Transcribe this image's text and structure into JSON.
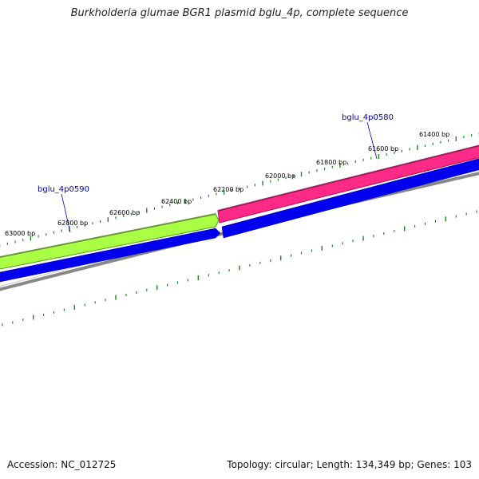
{
  "title": "Burkholderia glumae BGR1 plasmid bglu_4p, complete sequence",
  "footer": {
    "accession": "Accession: NC_012725",
    "summary": "Topology: circular; Length: 134,349 bp; Genes: 103"
  },
  "ticks": [
    {
      "label": "63000 bp"
    },
    {
      "label": "62800 bp"
    },
    {
      "label": "62600 bp"
    },
    {
      "label": "62400 bp"
    },
    {
      "label": "62200 bp"
    },
    {
      "label": "62000 bp"
    },
    {
      "label": "61800 bp"
    },
    {
      "label": "61600 bp"
    },
    {
      "label": "61400 bp"
    }
  ],
  "genes": [
    {
      "name": "bglu_4p0590",
      "color": "#aaff44"
    },
    {
      "name": "bglu_4p0580",
      "color": "#ff2a88"
    }
  ],
  "colors": {
    "cds_forward": "#0000ee",
    "backbone": "#888888",
    "ticks": "#1a8a1a",
    "gene_label": "#0000aa"
  }
}
